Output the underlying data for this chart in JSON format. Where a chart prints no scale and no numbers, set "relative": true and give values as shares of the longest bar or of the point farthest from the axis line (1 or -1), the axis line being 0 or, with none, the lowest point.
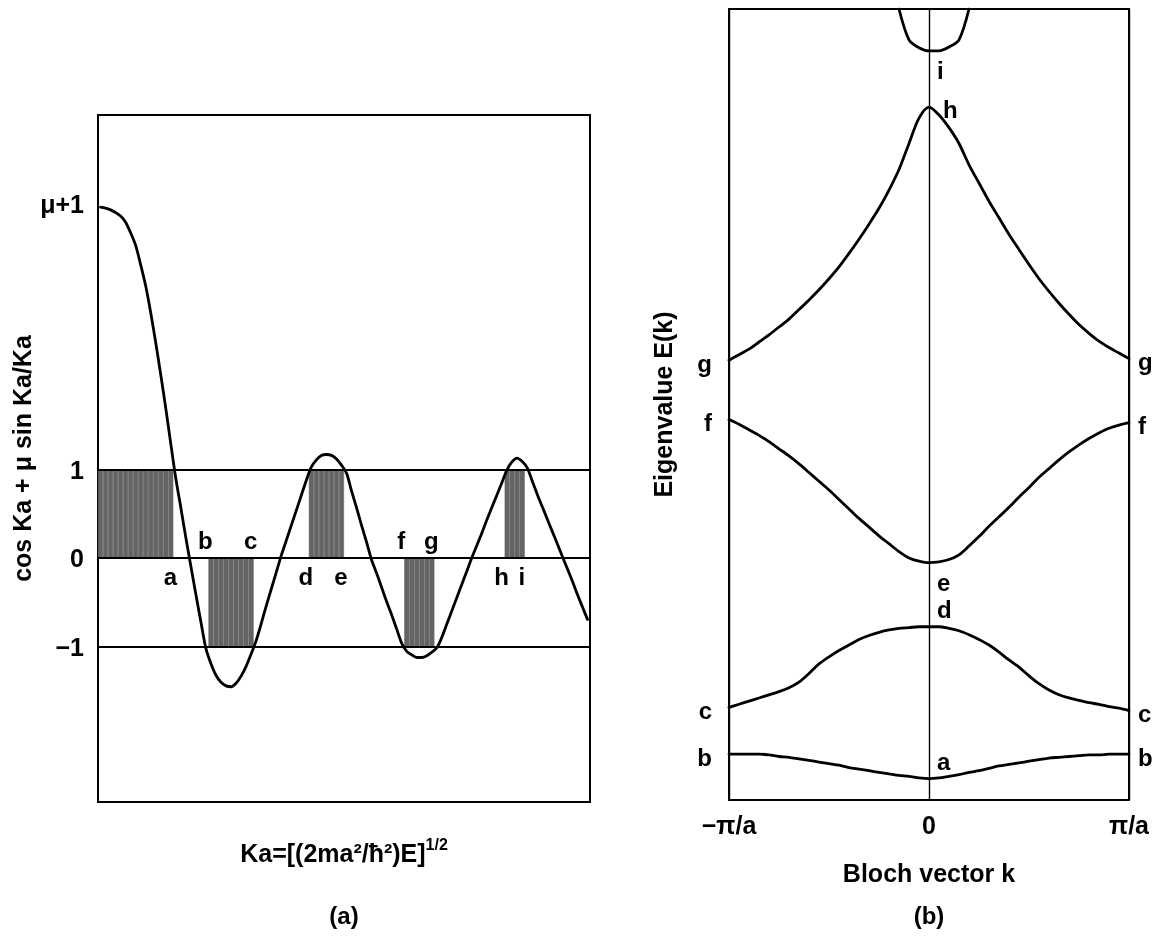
{
  "chart_data": [
    {
      "type": "line",
      "xlabel": "Ka=[(2ma²/ħ²)E]$^{1/2}$",
      "ylabel": "cos Ka + μ sin Ka/Ka",
      "categories": [
        null,
        null,
        null,
        null,
        null,
        null,
        null,
        null,
        null,
        null,
        null,
        null,
        null,
        null,
        null,
        null,
        null,
        null,
        null,
        null,
        null,
        null,
        null,
        null,
        null,
        null,
        null,
        null,
        null,
        null,
        null,
        null,
        null,
        null,
        null,
        null,
        null,
        null,
        null,
        null,
        null,
        null,
        null,
        null,
        null,
        null,
        null,
        null,
        null,
        null,
        null,
        null,
        null,
        null,
        null,
        null,
        null,
        null,
        null,
        null,
        null,
        null,
        null,
        null,
        null,
        null,
        null,
        null,
        null,
        null,
        null,
        null,
        null,
        null,
        null,
        null,
        null,
        null,
        null,
        null,
        null,
        null,
        null,
        null,
        null,
        null,
        null,
        null,
        null,
        null,
        null,
        null,
        null,
        null,
        null,
        null,
        null,
        null
      ],
      "series": [
        {
          "color": "#000000",
          "values": [
            3.96,
            3.95,
            3.93,
            3.9,
            3.86,
            3.79,
            3.67,
            3.53,
            3.31,
            3.07,
            2.77,
            2.43,
            2.07,
            1.69,
            1.29,
            0.9,
            0.57,
            0.23,
            -0.09,
            -0.41,
            -0.72,
            -1.02,
            -1.19,
            -1.32,
            -1.4,
            -1.44,
            -1.45,
            -1.41,
            -1.33,
            -1.22,
            -1.08,
            -0.93,
            -0.74,
            -0.54,
            -0.35,
            -0.16,
            0.03,
            0.2,
            0.37,
            0.54,
            0.71,
            0.88,
            1.03,
            1.11,
            1.16,
            1.17,
            1.16,
            1.12,
            1.05,
            0.96,
            0.76,
            0.57,
            0.37,
            0.18,
            -0.02,
            -0.17,
            -0.33,
            -0.49,
            -0.64,
            -0.8,
            -0.96,
            -1.05,
            -1.09,
            -1.12,
            -1.12,
            -1.1,
            -1.06,
            -1.01,
            -0.89,
            -0.74,
            -0.59,
            -0.44,
            -0.29,
            -0.14,
            0.01,
            0.15,
            0.29,
            0.44,
            0.58,
            0.72,
            0.86,
            1.0,
            1.09,
            1.13,
            1.09,
            1.02,
            0.87,
            0.72,
            0.58,
            0.44,
            0.3,
            0.16,
            0.02,
            -0.12,
            -0.26,
            -0.41,
            -0.55,
            -0.69
          ]
        },
        {
          "type": "bar",
          "color": "#646464",
          "values": [
            1,
            1,
            1,
            1,
            1,
            1,
            1,
            1,
            1,
            1,
            1,
            1,
            1,
            1,
            1,
            null,
            null,
            null,
            null,
            null,
            null,
            null,
            -1,
            -1,
            -1,
            -1,
            -1,
            -1,
            -1,
            -1,
            -1,
            null,
            null,
            null,
            null,
            null,
            null,
            null,
            null,
            null,
            null,
            null,
            1,
            1,
            1,
            1,
            1,
            1,
            1,
            null,
            null,
            null,
            null,
            null,
            null,
            null,
            null,
            null,
            null,
            null,
            null,
            -1,
            -1,
            -1,
            -1,
            -1,
            -1,
            null,
            null,
            null,
            null,
            null,
            null,
            null,
            null,
            null,
            null,
            null,
            null,
            null,
            null,
            1,
            1,
            1,
            1,
            null,
            null,
            null,
            null,
            null,
            null,
            null,
            null,
            null,
            null,
            null,
            null,
            null
          ]
        }
      ],
      "ylim": [
        -2.75,
        5.0
      ],
      "yticks": [
        {
          "value": -1,
          "label": "−1"
        },
        0,
        1,
        {
          "value": 4,
          "label": "μ+1"
        }
      ],
      "ref_lines": [
        {
          "axis": "y",
          "value": 1,
          "color": "#000000"
        },
        {
          "axis": "y",
          "value": 0,
          "color": "#000000"
        },
        {
          "axis": "y",
          "value": -1,
          "color": "#000000"
        }
      ],
      "tick_labels": "y",
      "annotations": [
        {
          "text": "a",
          "y": 0
        },
        {
          "text": "b",
          "y": 0
        },
        {
          "text": "c",
          "y": 0
        },
        {
          "text": "d",
          "y": 0
        },
        {
          "text": "e",
          "y": 0
        },
        {
          "text": "f",
          "y": 0
        },
        {
          "text": "g",
          "y": 0
        },
        {
          "text": "h",
          "y": 0
        },
        {
          "text": "i",
          "y": 0
        },
        "(a)"
      ]
    },
    {
      "type": "line",
      "xlabel": "Bloch vector k",
      "ylabel": "Eigenvalue E(k)",
      "relative": true,
      "grid": "x",
      "categories": [
        "−π/a",
        null,
        null,
        null,
        null,
        null,
        null,
        null,
        null,
        null,
        null,
        null,
        null,
        null,
        null,
        null,
        null,
        null,
        null,
        null,
        "0",
        null,
        null,
        null,
        null,
        null,
        null,
        null,
        null,
        null,
        null,
        null,
        null,
        null,
        null,
        null,
        null,
        null,
        null,
        null,
        "π/a"
      ],
      "series": [
        {
          "color": "#000000",
          "values": [
            0.058,
            0.058,
            0.058,
            0.058,
            0.057,
            0.055,
            0.054,
            0.052,
            0.05,
            0.048,
            0.046,
            0.044,
            0.041,
            0.039,
            0.037,
            0.035,
            0.033,
            0.031,
            0.03,
            0.028,
            0.027,
            0.028,
            0.03,
            0.032,
            0.035,
            0.037,
            0.04,
            0.043,
            0.045,
            0.047,
            0.049,
            0.051,
            0.053,
            0.054,
            0.055,
            0.056,
            0.057,
            0.057,
            0.058,
            0.058,
            0.058
          ]
        },
        {
          "color": "#000000",
          "values": [
            0.117,
            0.121,
            0.125,
            0.129,
            0.133,
            0.137,
            0.142,
            0.149,
            0.16,
            0.172,
            0.181,
            0.189,
            0.196,
            0.203,
            0.208,
            0.212,
            0.215,
            0.217,
            0.218,
            0.219,
            0.219,
            0.219,
            0.217,
            0.214,
            0.209,
            0.203,
            0.196,
            0.187,
            0.177,
            0.168,
            0.157,
            0.147,
            0.139,
            0.133,
            0.129,
            0.126,
            0.123,
            0.121,
            0.118,
            0.116,
            0.113
          ]
        },
        {
          "color": "#000000",
          "values": [
            0.481,
            0.475,
            0.468,
            0.461,
            0.453,
            0.444,
            0.435,
            0.425,
            0.414,
            0.403,
            0.392,
            0.38,
            0.368,
            0.356,
            0.345,
            0.334,
            0.324,
            0.314,
            0.306,
            0.302,
            0.3,
            0.301,
            0.304,
            0.31,
            0.321,
            0.333,
            0.346,
            0.358,
            0.37,
            0.383,
            0.395,
            0.408,
            0.419,
            0.43,
            0.44,
            0.449,
            0.457,
            0.464,
            0.47,
            0.474,
            0.477
          ]
        },
        {
          "color": "#000000",
          "values": [
            0.556,
            0.563,
            0.57,
            0.579,
            0.588,
            0.598,
            0.608,
            0.62,
            0.632,
            0.645,
            0.659,
            0.674,
            0.691,
            0.709,
            0.728,
            0.748,
            0.771,
            0.797,
            0.83,
            0.862,
            0.876,
            0.866,
            0.85,
            0.83,
            0.803,
            0.78,
            0.757,
            0.736,
            0.715,
            0.696,
            0.677,
            0.659,
            0.643,
            0.628,
            0.614,
            0.601,
            0.59,
            0.58,
            0.572,
            0.565,
            0.558
          ]
        },
        {
          "color": "#000000",
          "values": [
            null,
            null,
            null,
            null,
            null,
            null,
            null,
            null,
            null,
            null,
            null,
            null,
            null,
            null,
            null,
            null,
            null,
            1.0,
            0.961,
            0.951,
            0.947,
            0.947,
            0.952,
            0.961,
            1.0,
            null,
            null,
            null,
            null,
            null,
            null,
            null,
            null,
            null,
            null,
            null,
            null,
            null,
            null,
            null,
            null
          ]
        }
      ],
      "annotations": [
        {
          "text": "a",
          "x": "0",
          "y": 0.027
        },
        {
          "text": "b",
          "x": "−π/a",
          "y": 0.058
        },
        {
          "text": "b",
          "x": "π/a",
          "y": 0.058
        },
        {
          "text": "c",
          "x": "−π/a",
          "y": 0.117
        },
        {
          "text": "c",
          "x": "π/a",
          "y": 0.113
        },
        {
          "text": "d",
          "x": "0",
          "y": 0.219
        },
        {
          "text": "e",
          "x": "0",
          "y": 0.3
        },
        {
          "text": "f",
          "x": "−π/a",
          "y": 0.481
        },
        {
          "text": "f",
          "x": "π/a",
          "y": 0.477
        },
        {
          "text": "g",
          "x": "−π/a",
          "y": 0.556
        },
        {
          "text": "g",
          "x": "π/a",
          "y": 0.558
        },
        {
          "text": "h",
          "x": "0",
          "y": 0.876
        },
        {
          "text": "i",
          "x": "0",
          "y": 0.947
        },
        "(b)"
      ]
    }
  ]
}
